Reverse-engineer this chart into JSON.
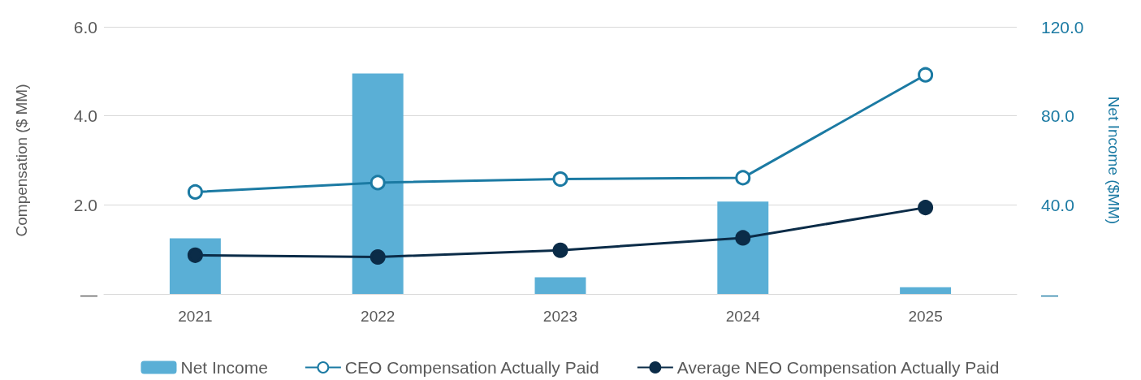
{
  "chart_data": {
    "type": "bar",
    "categories": [
      "2021",
      "2022",
      "2023",
      "2024",
      "2025"
    ],
    "ylabel": "Compensation ($ MM)",
    "y2label": "Net Income ($MM)",
    "ylim": [
      0,
      6
    ],
    "yticks": [
      {
        "value": 0,
        "label": "—"
      },
      {
        "value": 2,
        "label": "2.0"
      },
      {
        "value": 4,
        "label": "4.0"
      },
      {
        "value": 6,
        "label": "6.0"
      }
    ],
    "y2lim": [
      0,
      120
    ],
    "y2ticks": [
      {
        "value": 0,
        "label": "—"
      },
      {
        "value": 40,
        "label": "40.0"
      },
      {
        "value": 80,
        "label": "80.0"
      },
      {
        "value": 120,
        "label": "120.0"
      }
    ],
    "grid": "y",
    "legend": "bottom",
    "series": [
      {
        "name": "Net Income",
        "axis": "y2",
        "color": "#5aafd6",
        "values": [
          25,
          99,
          7.5,
          41.5,
          3
        ]
      },
      {
        "name": "CEO Compensation Actually Paid",
        "type": "line",
        "marker": "circle",
        "color": "#1b7aa3",
        "values": [
          2.29,
          2.5,
          2.58,
          2.61,
          4.92
        ]
      },
      {
        "name": "Average NEO Compensation Actually Paid",
        "type": "line",
        "marker": "circle",
        "color": "#0b2c48",
        "values": [
          0.87,
          0.83,
          0.98,
          1.26,
          1.94
        ]
      }
    ]
  }
}
